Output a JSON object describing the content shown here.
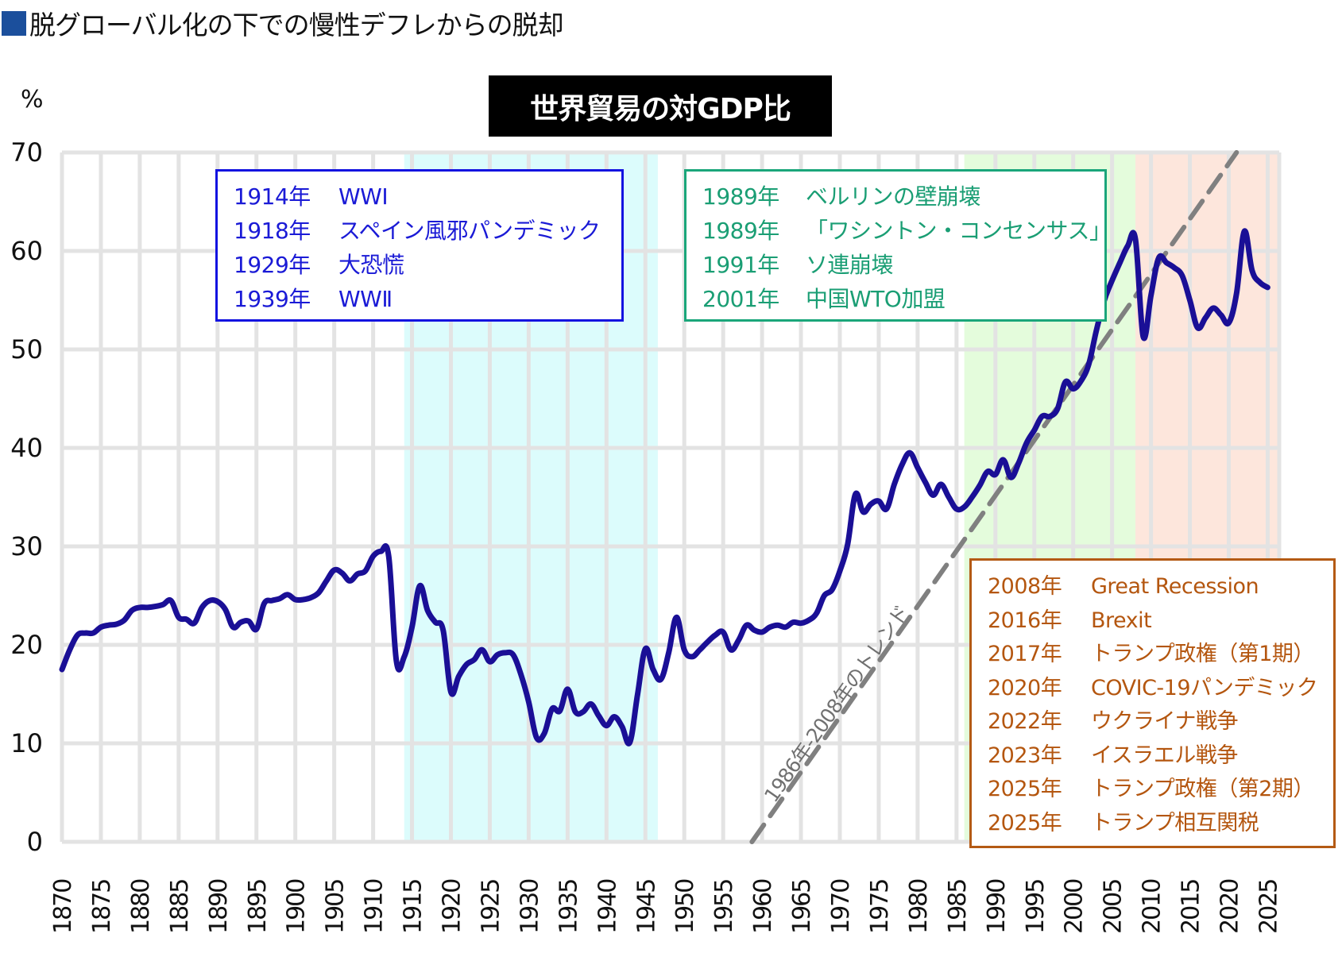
{
  "heading": {
    "marker_color": "#1b4f9c",
    "text": "脱グローバル化の下での慢性デフレからの脱却"
  },
  "chart_data": {
    "type": "line",
    "title": "世界貿易の対GDP比",
    "ylabel": "%",
    "xlabel": "",
    "ylim": [
      0,
      70
    ],
    "xlim": [
      1870,
      2025
    ],
    "yticks": [
      0,
      10,
      20,
      30,
      40,
      50,
      60,
      70
    ],
    "xticks": [
      1870,
      1875,
      1880,
      1885,
      1890,
      1895,
      1900,
      1905,
      1910,
      1915,
      1920,
      1925,
      1930,
      1935,
      1940,
      1945,
      1950,
      1955,
      1960,
      1965,
      1970,
      1975,
      1980,
      1985,
      1990,
      1995,
      2000,
      2005,
      2010,
      2015,
      2020,
      2025
    ],
    "grid": true,
    "series": [
      {
        "name": "世界貿易の対GDP比",
        "color": "#1a0f96",
        "x": [
          1870,
          1871,
          1872,
          1873,
          1874,
          1875,
          1876,
          1877,
          1878,
          1879,
          1880,
          1881,
          1882,
          1883,
          1884,
          1885,
          1886,
          1887,
          1888,
          1889,
          1890,
          1891,
          1892,
          1893,
          1894,
          1895,
          1896,
          1897,
          1898,
          1899,
          1900,
          1901,
          1902,
          1903,
          1904,
          1905,
          1906,
          1907,
          1908,
          1909,
          1910,
          1911,
          1912,
          1913,
          1914,
          1915,
          1916,
          1917,
          1918,
          1919,
          1920,
          1921,
          1922,
          1923,
          1924,
          1925,
          1926,
          1927,
          1928,
          1929,
          1930,
          1931,
          1932,
          1933,
          1934,
          1935,
          1936,
          1937,
          1938,
          1939,
          1940,
          1941,
          1942,
          1943,
          1944,
          1945,
          1946,
          1947,
          1948,
          1949,
          1950,
          1951,
          1952,
          1953,
          1954,
          1955,
          1956,
          1957,
          1958,
          1959,
          1960,
          1961,
          1962,
          1963,
          1964,
          1965,
          1966,
          1967,
          1968,
          1969,
          1970,
          1971,
          1972,
          1973,
          1974,
          1975,
          1976,
          1977,
          1978,
          1979,
          1980,
          1981,
          1982,
          1983,
          1984,
          1985,
          1986,
          1987,
          1988,
          1989,
          1990,
          1991,
          1992,
          1993,
          1994,
          1995,
          1996,
          1997,
          1998,
          1999,
          2000,
          2001,
          2002,
          2003,
          2004,
          2005,
          2006,
          2007,
          2008,
          2009,
          2010,
          2011,
          2012,
          2013,
          2014,
          2015,
          2016,
          2017,
          2018,
          2019,
          2020,
          2021,
          2022,
          2023,
          2024,
          2025
        ],
        "values": [
          17.5,
          19.5,
          21.0,
          21.2,
          21.2,
          21.8,
          22.0,
          22.1,
          22.5,
          23.5,
          23.8,
          23.8,
          23.9,
          24.1,
          24.5,
          22.8,
          22.6,
          22.2,
          23.8,
          24.5,
          24.4,
          23.6,
          21.8,
          22.3,
          22.4,
          21.6,
          24.2,
          24.5,
          24.7,
          25.1,
          24.6,
          24.6,
          24.8,
          25.3,
          26.5,
          27.6,
          27.3,
          26.5,
          27.2,
          27.5,
          29.0,
          29.5,
          29.0,
          18.3,
          18.8,
          21.8,
          26.0,
          23.5,
          22.3,
          21.5,
          15.2,
          16.8,
          18.0,
          18.5,
          19.5,
          18.3,
          19.0,
          19.2,
          19.0,
          17.0,
          14.2,
          10.6,
          11.0,
          13.5,
          13.3,
          15.5,
          13.2,
          13.2,
          14.0,
          12.8,
          11.8,
          12.7,
          11.7,
          10.1,
          15.0,
          19.6,
          17.5,
          16.5,
          19.2,
          22.8,
          19.5,
          18.8,
          19.5,
          20.3,
          21.0,
          21.3,
          19.5,
          20.5,
          22.0,
          21.5,
          21.3,
          21.8,
          22.0,
          21.8,
          22.3,
          22.2,
          22.5,
          23.2,
          25.0,
          25.6,
          27.5,
          30.2,
          35.3,
          33.5,
          34.3,
          34.6,
          33.8,
          36.3,
          38.3,
          39.5,
          38.0,
          36.5,
          35.2,
          36.3,
          35.0,
          33.8,
          34.0,
          35.0,
          36.2,
          37.6,
          37.3,
          38.8,
          37.0,
          38.5,
          40.5,
          41.8,
          43.2,
          43.2,
          44.0,
          46.7,
          46.0,
          46.8,
          48.5,
          52.0,
          55.0,
          57.0,
          58.8,
          60.5,
          61.2,
          51.3,
          55.5,
          59.3,
          58.8,
          58.3,
          57.5,
          55.0,
          52.2,
          53.2,
          54.2,
          53.5,
          52.7,
          55.7,
          62.0,
          58.0,
          56.8,
          56.3
        ]
      },
      {
        "name": "1986年-2008年のトレンド",
        "style": "dashed",
        "color": "#808080",
        "x": [
          1958.7,
          2021.0
        ],
        "values": [
          0,
          70
        ]
      }
    ],
    "shaded_periods": [
      {
        "from": 1914,
        "to": 1946.6,
        "color": "#dcfcfc"
      },
      {
        "from": 1986,
        "to": 2008,
        "color": "#e4fcdc"
      },
      {
        "from": 2008,
        "to": 2027,
        "color": "#fde6dc"
      }
    ],
    "annotations": {
      "trend_label": "1986年-2008年のトレンド",
      "boxes": [
        {
          "color": "#1a1ad6",
          "items": [
            {
              "year": "1914年",
              "event": "WWⅠ"
            },
            {
              "year": "1918年",
              "event": "スペイン風邪パンデミック"
            },
            {
              "year": "1929年",
              "event": "大恐慌"
            },
            {
              "year": "1939年",
              "event": "WWⅡ"
            }
          ]
        },
        {
          "color": "#1a9e74",
          "items": [
            {
              "year": "1989年",
              "event": "ベルリンの壁崩壊"
            },
            {
              "year": "1989年",
              "event": "「ワシントン・コンセンサス」"
            },
            {
              "year": "1991年",
              "event": "ソ連崩壊"
            },
            {
              "year": "2001年",
              "event": "中国WTO加盟"
            }
          ]
        },
        {
          "color": "#b4560f",
          "items": [
            {
              "year": "2008年",
              "event": "Great Recession"
            },
            {
              "year": "2016年",
              "event": "Brexit"
            },
            {
              "year": "2017年",
              "event": "トランプ政権（第1期）"
            },
            {
              "year": "2020年",
              "event": "COVIC-19パンデミック"
            },
            {
              "year": "2022年",
              "event": "ウクライナ戦争"
            },
            {
              "year": "2023年",
              "event": "イスラエル戦争"
            },
            {
              "year": "2025年",
              "event": "トランプ政権（第2期）"
            },
            {
              "year": "2025年",
              "event": "トランプ相互関税"
            }
          ]
        }
      ]
    }
  }
}
